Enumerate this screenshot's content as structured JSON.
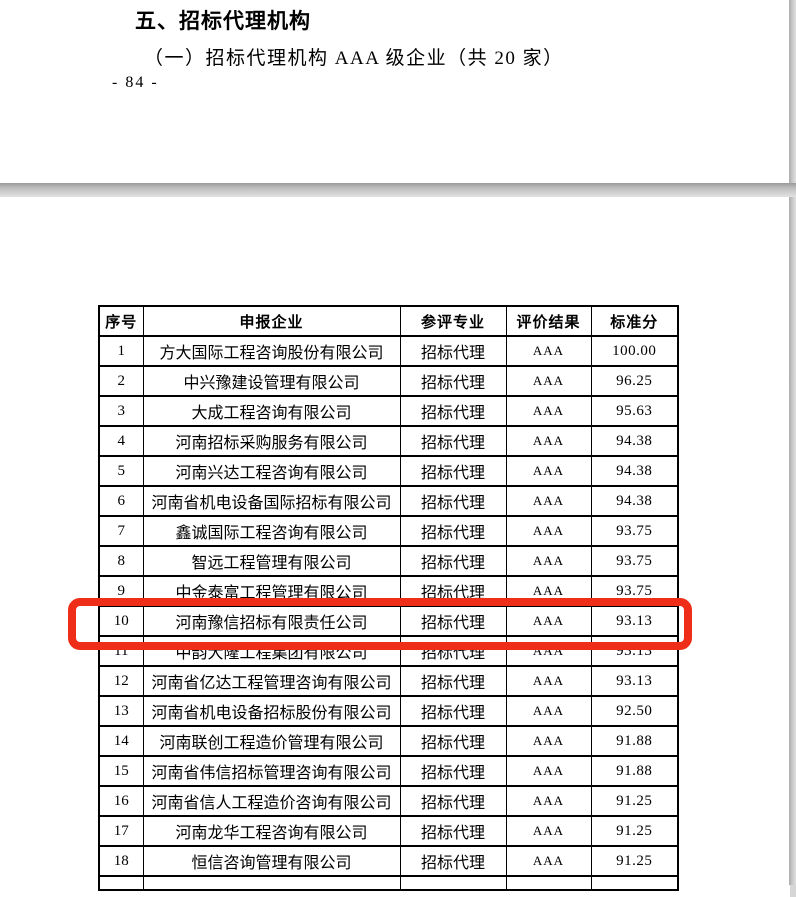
{
  "page1": {
    "heading": "五、招标代理机构",
    "subheading": "（一）招标代理机构 AAA 级企业（共 20 家）",
    "page_number": "- 84 -"
  },
  "table": {
    "headers": [
      "序号",
      "申报企业",
      "参评专业",
      "评价结果",
      "标准分"
    ],
    "rows": [
      [
        "1",
        "方大国际工程咨询股份有限公司",
        "招标代理",
        "AAA",
        "100.00"
      ],
      [
        "2",
        "中兴豫建设管理有限公司",
        "招标代理",
        "AAA",
        "96.25"
      ],
      [
        "3",
        "大成工程咨询有限公司",
        "招标代理",
        "AAA",
        "95.63"
      ],
      [
        "4",
        "河南招标采购服务有限公司",
        "招标代理",
        "AAA",
        "94.38"
      ],
      [
        "5",
        "河南兴达工程咨询有限公司",
        "招标代理",
        "AAA",
        "94.38"
      ],
      [
        "6",
        "河南省机电设备国际招标有限公司",
        "招标代理",
        "AAA",
        "94.38"
      ],
      [
        "7",
        "鑫诚国际工程咨询有限公司",
        "招标代理",
        "AAA",
        "93.75"
      ],
      [
        "8",
        "智远工程管理有限公司",
        "招标代理",
        "AAA",
        "93.75"
      ],
      [
        "9",
        "中金泰富工程管理有限公司",
        "招标代理",
        "AAA",
        "93.75"
      ],
      [
        "10",
        "河南豫信招标有限责任公司",
        "招标代理",
        "AAA",
        "93.13"
      ],
      [
        "11",
        "中韵大隆工程集团有限公司",
        "招标代理",
        "AAA",
        "93.13"
      ],
      [
        "12",
        "河南省亿达工程管理咨询有限公司",
        "招标代理",
        "AAA",
        "93.13"
      ],
      [
        "13",
        "河南省机电设备招标股份有限公司",
        "招标代理",
        "AAA",
        "92.50"
      ],
      [
        "14",
        "河南联创工程造价管理有限公司",
        "招标代理",
        "AAA",
        "91.88"
      ],
      [
        "15",
        "河南省伟信招标管理咨询有限公司",
        "招标代理",
        "AAA",
        "91.88"
      ],
      [
        "16",
        "河南省信人工程造价咨询有限公司",
        "招标代理",
        "AAA",
        "91.25"
      ],
      [
        "17",
        "河南龙华工程咨询有限公司",
        "招标代理",
        "AAA",
        "91.25"
      ],
      [
        "18",
        "恒信咨询管理有限公司",
        "招标代理",
        "AAA",
        "91.25"
      ]
    ],
    "highlighted_row_number": "10"
  },
  "highlight": {
    "color": "#ee2e18"
  }
}
